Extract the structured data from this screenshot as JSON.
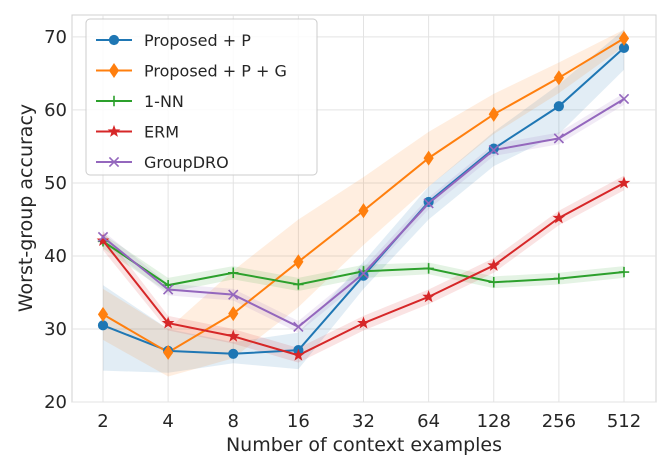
{
  "chart_data": {
    "type": "line",
    "title": "",
    "xlabel": "Number of context examples",
    "ylabel": "Worst-group accuracy",
    "categories": [
      "2",
      "4",
      "8",
      "16",
      "32",
      "64",
      "128",
      "256",
      "512"
    ],
    "ylim": [
      20,
      73
    ],
    "yticks": [
      20,
      30,
      40,
      50,
      60,
      70
    ],
    "grid": true,
    "legend_position": "top-left",
    "series": [
      {
        "name": "Proposed + P",
        "color": "#1f77b4",
        "marker": "circle",
        "values": [
          30.5,
          27.0,
          26.6,
          27.1,
          37.3,
          47.4,
          54.7,
          60.5,
          68.5
        ],
        "band_low": [
          24.3,
          24.0,
          25.3,
          24.5,
          35.5,
          45.0,
          52.3,
          56.7,
          65.5
        ],
        "band_high": [
          36.0,
          30.0,
          28.2,
          29.5,
          39.2,
          49.5,
          57.0,
          63.5,
          71.0
        ]
      },
      {
        "name": "Proposed + P + G",
        "color": "#ff7f0e",
        "marker": "diamond",
        "values": [
          32.0,
          26.8,
          32.1,
          39.2,
          46.2,
          53.4,
          59.4,
          64.4,
          69.8
        ],
        "band_low": [
          28.5,
          23.5,
          26.0,
          33.0,
          41.5,
          49.5,
          56.7,
          62.3,
          68.7
        ],
        "band_high": [
          35.5,
          30.0,
          38.0,
          45.0,
          50.8,
          57.0,
          62.2,
          66.5,
          71.0
        ]
      },
      {
        "name": "1-NN",
        "color": "#2ca02c",
        "marker": "plus",
        "values": [
          42.0,
          36.0,
          37.7,
          36.1,
          37.9,
          38.3,
          36.4,
          36.9,
          37.8
        ],
        "band_low": [
          41.0,
          35.0,
          36.8,
          35.2,
          37.0,
          37.5,
          35.6,
          36.1,
          37.0
        ],
        "band_high": [
          43.0,
          37.0,
          38.6,
          37.0,
          38.8,
          39.1,
          37.2,
          37.7,
          38.6
        ]
      },
      {
        "name": "ERM",
        "color": "#d62728",
        "marker": "star",
        "values": [
          42.1,
          30.8,
          29.0,
          26.4,
          30.8,
          34.4,
          38.7,
          45.2,
          50.0
        ],
        "band_low": [
          40.8,
          29.8,
          28.0,
          25.4,
          29.8,
          33.4,
          37.7,
          44.2,
          49.0
        ],
        "band_high": [
          43.4,
          31.8,
          30.0,
          27.4,
          31.8,
          35.4,
          39.7,
          46.2,
          51.0
        ]
      },
      {
        "name": "GroupDRO",
        "color": "#9467bd",
        "marker": "x",
        "values": [
          42.6,
          35.4,
          34.7,
          30.3,
          37.6,
          47.2,
          54.5,
          56.1,
          61.5
        ],
        "band_low": [
          41.8,
          34.6,
          33.9,
          29.5,
          36.8,
          46.4,
          53.7,
          55.3,
          60.7
        ],
        "band_high": [
          43.4,
          36.2,
          35.5,
          31.1,
          38.4,
          48.0,
          55.3,
          56.9,
          62.3
        ]
      }
    ]
  }
}
